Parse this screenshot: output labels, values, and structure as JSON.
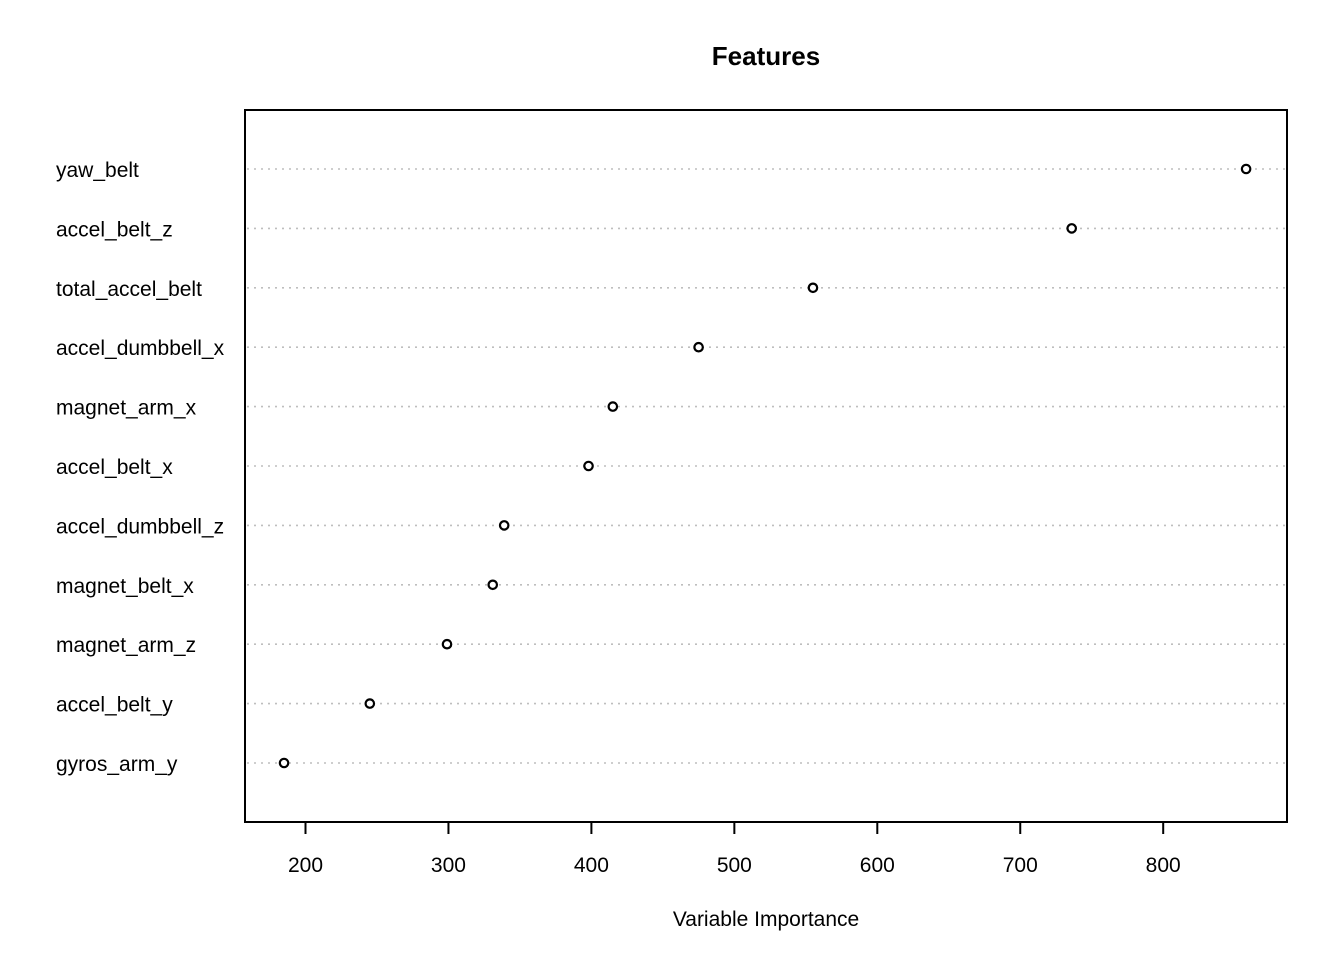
{
  "chart_data": {
    "type": "scatter",
    "title": "Features",
    "xlabel": "Variable Importance",
    "ylabel": "",
    "xlim": [
      158,
      885
    ],
    "xticks": [
      200,
      300,
      400,
      500,
      600,
      700,
      800
    ],
    "xtick_labels": [
      "200",
      "300",
      "400",
      "500",
      "600",
      "700",
      "800"
    ],
    "grid": "dotted horizontal",
    "categories": [
      "yaw_belt",
      "accel_belt_z",
      "total_accel_belt",
      "accel_dumbbell_x",
      "magnet_arm_x",
      "accel_belt_x",
      "accel_dumbbell_z",
      "magnet_belt_x",
      "magnet_arm_z",
      "accel_belt_y",
      "gyros_arm_y"
    ],
    "values": [
      858,
      736,
      555,
      475,
      415,
      398,
      339,
      331,
      299,
      245,
      185
    ]
  }
}
